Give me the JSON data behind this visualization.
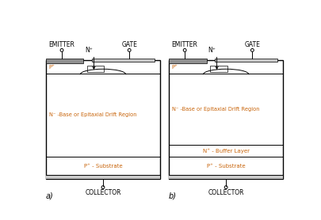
{
  "fig_width": 4.05,
  "fig_height": 2.78,
  "dpi": 100,
  "bg_color": "#ffffff",
  "border_color": "#000000",
  "gray_color": "#909090",
  "light_gray": "#c8c8c8",
  "text_color_orange": "#c8640a",
  "text_color_black": "#000000",
  "label_a": "a)",
  "label_b": "b)",
  "collector_label": "COLLECTOR",
  "emitter_label": "EMITTER",
  "gate_label": "GATE",
  "n_plus_label": "N⁺",
  "p_plus_label": "P⁺",
  "n_minus_base_label": "N⁻ -Base or Epitaxial Drift Region",
  "n_plus_buffer_label": "N⁺ - Buffer Layer",
  "p_plus_substrate_label": "P⁺ - Substrate"
}
